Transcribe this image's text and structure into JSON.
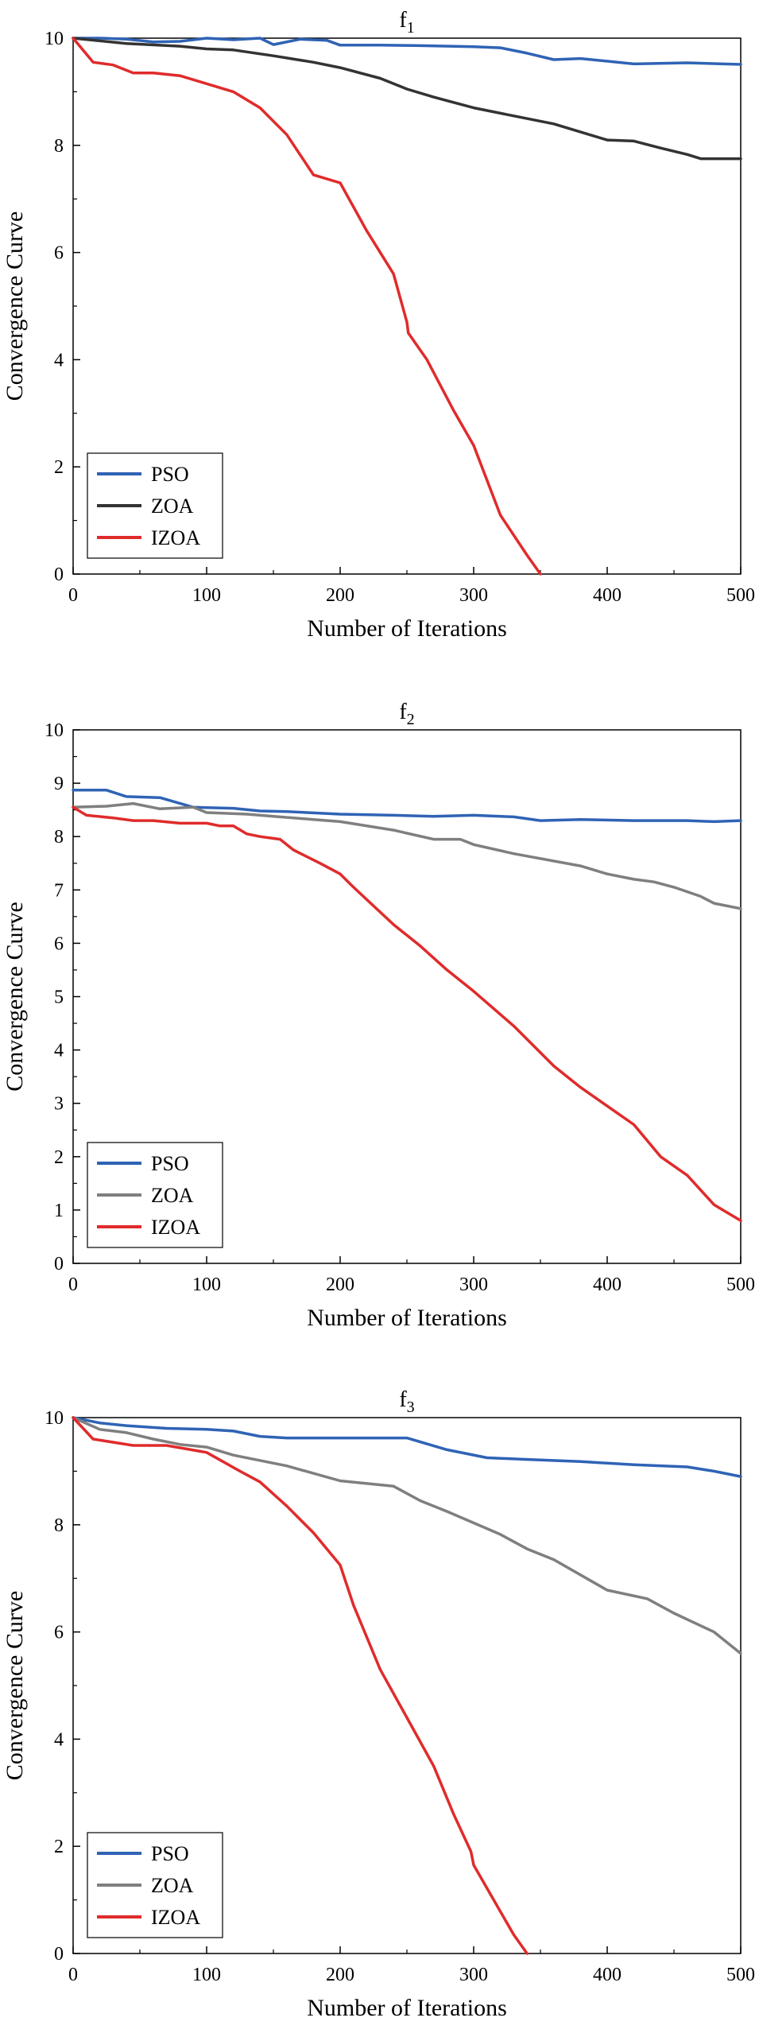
{
  "chart_data": [
    {
      "type": "line",
      "title": "f1",
      "xlabel": "Number of Iterations",
      "ylabel": "Convergence Curve",
      "xlim": [
        0,
        500
      ],
      "ylim": [
        0,
        10
      ],
      "xticks": [
        0,
        100,
        200,
        300,
        400,
        500
      ],
      "yticks": [
        0,
        2,
        4,
        6,
        8,
        10
      ],
      "grid": false,
      "legend_position": "bottom-left",
      "series": [
        {
          "name": "PSO",
          "color": "#2f63b5",
          "x": [
            0,
            20,
            40,
            60,
            80,
            100,
            120,
            140,
            150,
            170,
            190,
            200,
            230,
            260,
            300,
            320,
            340,
            360,
            380,
            420,
            460,
            500
          ],
          "y": [
            10,
            10,
            9.98,
            9.93,
            9.94,
            10,
            9.97,
            10,
            9.88,
            9.98,
            9.96,
            9.87,
            9.87,
            9.86,
            9.84,
            9.82,
            9.72,
            9.6,
            9.62,
            9.52,
            9.54,
            9.51
          ]
        },
        {
          "name": "ZOA",
          "color": "#333333",
          "x": [
            0,
            40,
            80,
            100,
            120,
            150,
            180,
            200,
            230,
            250,
            270,
            300,
            320,
            360,
            400,
            420,
            440,
            460,
            470,
            500
          ],
          "y": [
            10,
            9.9,
            9.85,
            9.8,
            9.78,
            9.67,
            9.55,
            9.45,
            9.25,
            9.05,
            8.9,
            8.7,
            8.6,
            8.4,
            8.1,
            8.08,
            7.95,
            7.83,
            7.75,
            7.75
          ]
        },
        {
          "name": "IZOA",
          "color": "#e02b2b",
          "x": [
            0,
            15,
            30,
            45,
            60,
            80,
            100,
            120,
            140,
            160,
            180,
            200,
            220,
            240,
            250,
            251,
            265,
            285,
            300,
            320,
            340,
            350
          ],
          "y": [
            10,
            9.55,
            9.5,
            9.35,
            9.35,
            9.3,
            9.15,
            9.0,
            8.7,
            8.2,
            7.45,
            7.3,
            6.4,
            5.6,
            4.7,
            4.5,
            4.0,
            3.05,
            2.4,
            1.1,
            0.35,
            0
          ]
        }
      ]
    },
    {
      "type": "line",
      "title": "f2",
      "xlabel": "Number of Iterations",
      "ylabel": "Convergence Curve",
      "xlim": [
        0,
        500
      ],
      "ylim": [
        0,
        10
      ],
      "xticks": [
        0,
        100,
        200,
        300,
        400,
        500
      ],
      "yticks": [
        0,
        1,
        2,
        3,
        4,
        5,
        6,
        7,
        8,
        9,
        10
      ],
      "grid": false,
      "legend_position": "bottom-left",
      "series": [
        {
          "name": "PSO",
          "color": "#2f63b5",
          "x": [
            0,
            25,
            40,
            65,
            90,
            120,
            140,
            160,
            200,
            240,
            270,
            300,
            330,
            350,
            380,
            420,
            460,
            480,
            500
          ],
          "y": [
            8.87,
            8.87,
            8.75,
            8.73,
            8.55,
            8.53,
            8.48,
            8.47,
            8.42,
            8.4,
            8.38,
            8.4,
            8.37,
            8.3,
            8.32,
            8.3,
            8.3,
            8.28,
            8.3
          ]
        },
        {
          "name": "ZOA",
          "color": "#7f7f7f",
          "x": [
            0,
            25,
            45,
            65,
            90,
            100,
            130,
            150,
            180,
            200,
            240,
            270,
            290,
            300,
            330,
            380,
            400,
            420,
            435,
            450,
            470,
            480,
            500
          ],
          "y": [
            8.55,
            8.57,
            8.62,
            8.52,
            8.55,
            8.45,
            8.42,
            8.38,
            8.32,
            8.28,
            8.12,
            7.95,
            7.95,
            7.85,
            7.68,
            7.45,
            7.3,
            7.2,
            7.15,
            7.05,
            6.88,
            6.75,
            6.65
          ]
        },
        {
          "name": "IZOA",
          "color": "#e02b2b",
          "x": [
            0,
            10,
            30,
            45,
            60,
            80,
            100,
            110,
            120,
            130,
            140,
            155,
            165,
            185,
            200,
            210,
            240,
            260,
            280,
            300,
            330,
            360,
            380,
            400,
            420,
            440,
            460,
            480,
            500
          ],
          "y": [
            8.55,
            8.4,
            8.35,
            8.3,
            8.3,
            8.25,
            8.25,
            8.2,
            8.2,
            8.05,
            8.0,
            7.95,
            7.75,
            7.5,
            7.3,
            7.05,
            6.35,
            5.95,
            5.5,
            5.1,
            4.45,
            3.7,
            3.3,
            2.95,
            2.6,
            2.0,
            1.65,
            1.1,
            0.8
          ]
        }
      ]
    },
    {
      "type": "line",
      "title": "f3",
      "xlabel": "Number of Iterations",
      "ylabel": "Convergence Curve",
      "xlim": [
        0,
        500
      ],
      "ylim": [
        0,
        10
      ],
      "xticks": [
        0,
        100,
        200,
        300,
        400,
        500
      ],
      "yticks": [
        0,
        2,
        4,
        6,
        8,
        10
      ],
      "grid": false,
      "legend_position": "bottom-left",
      "series": [
        {
          "name": "PSO",
          "color": "#2f63b5",
          "x": [
            0,
            20,
            40,
            70,
            100,
            120,
            140,
            160,
            200,
            250,
            280,
            310,
            340,
            380,
            420,
            460,
            480,
            500
          ],
          "y": [
            10,
            9.9,
            9.85,
            9.8,
            9.78,
            9.75,
            9.65,
            9.62,
            9.62,
            9.62,
            9.4,
            9.25,
            9.22,
            9.18,
            9.12,
            9.08,
            9.0,
            8.9
          ]
        },
        {
          "name": "ZOA",
          "color": "#7f7f7f",
          "x": [
            0,
            20,
            40,
            60,
            80,
            100,
            120,
            160,
            200,
            240,
            260,
            280,
            320,
            340,
            360,
            400,
            430,
            450,
            480,
            500
          ],
          "y": [
            10,
            9.78,
            9.72,
            9.6,
            9.5,
            9.45,
            9.3,
            9.1,
            8.82,
            8.72,
            8.45,
            8.25,
            7.82,
            7.55,
            7.35,
            6.78,
            6.62,
            6.35,
            6.0,
            5.6
          ]
        },
        {
          "name": "IZOA",
          "color": "#e02b2b",
          "x": [
            0,
            15,
            45,
            70,
            100,
            125,
            140,
            160,
            180,
            200,
            210,
            230,
            250,
            270,
            285,
            298,
            300,
            315,
            330,
            340
          ],
          "y": [
            10,
            9.6,
            9.48,
            9.48,
            9.35,
            9.0,
            8.8,
            8.35,
            7.85,
            7.25,
            6.5,
            5.3,
            4.4,
            3.5,
            2.6,
            1.9,
            1.65,
            1.0,
            0.35,
            0
          ]
        }
      ]
    }
  ]
}
